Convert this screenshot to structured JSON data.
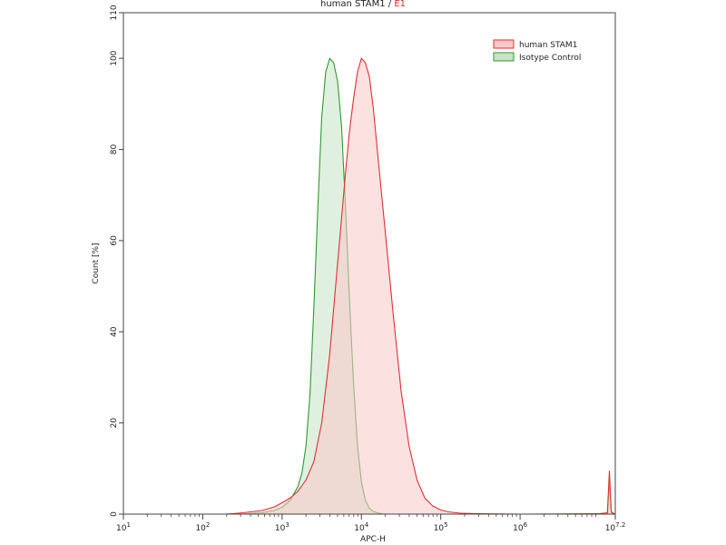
{
  "chart_data": {
    "type": "area",
    "title": "human STAM1",
    "title_separator": " / ",
    "title_suffix": "E1",
    "xlabel": "APC-H",
    "ylabel": "Count [%]",
    "x_scale": "log",
    "xlim": [
      10,
      15848932
    ],
    "ylim": [
      0,
      110
    ],
    "x_ticks": [
      {
        "value": 10,
        "base": "10",
        "exp": "1"
      },
      {
        "value": 100,
        "base": "10",
        "exp": "2"
      },
      {
        "value": 1000,
        "base": "10",
        "exp": "3"
      },
      {
        "value": 10000,
        "base": "10",
        "exp": "4"
      },
      {
        "value": 100000,
        "base": "10",
        "exp": "5"
      },
      {
        "value": 1000000,
        "base": "10",
        "exp": "6"
      },
      {
        "value": 15848932,
        "base": "10",
        "exp": "7.2"
      }
    ],
    "y_ticks": [
      0,
      20,
      40,
      60,
      80,
      100,
      110
    ],
    "legend_position": "top-right",
    "series": [
      {
        "name": "human STAM1",
        "stroke": "#e03030",
        "fill": "#f9c8c8",
        "fill_opacity": 0.55,
        "x": [
          200,
          320,
          560,
          800,
          1000,
          1260,
          1580,
          2000,
          2510,
          3160,
          3980,
          5010,
          6310,
          7080,
          7940,
          8910,
          10000,
          11220,
          12590,
          14130,
          15850,
          19950,
          25120,
          31620,
          39810,
          50120,
          63100,
          79430,
          100000,
          125900,
          177800,
          316200,
          1000000,
          3162000,
          10000000,
          12590000,
          13340000,
          14130000,
          14960000,
          15850000
        ],
        "y": [
          0,
          0.3,
          0.8,
          1.6,
          2.5,
          3.5,
          5,
          7.5,
          11.5,
          20,
          35,
          55,
          75,
          84,
          91,
          97,
          100,
          99,
          96,
          89,
          80,
          62,
          44,
          27,
          15,
          7.5,
          3.5,
          1.8,
          0.9,
          0.5,
          0.2,
          0.1,
          0,
          0,
          0.1,
          0.3,
          9.5,
          0.5,
          0.2,
          0
        ]
      },
      {
        "name": "Isotype Control",
        "stroke": "#2e9a2e",
        "fill": "#c6e4c6",
        "fill_opacity": 0.55,
        "x": [
          300,
          560,
          800,
          1000,
          1260,
          1580,
          1780,
          2000,
          2240,
          2510,
          2820,
          3160,
          3550,
          3980,
          4470,
          5010,
          5620,
          6310,
          7080,
          7940,
          8910,
          10000,
          11220,
          12590,
          14130,
          15850,
          17780,
          19950,
          25120,
          31620,
          50120,
          100000,
          1000000,
          10000000,
          12590000,
          13340000,
          14130000,
          14960000,
          15850000
        ],
        "y": [
          0,
          0.3,
          0.8,
          1.5,
          3,
          6,
          9,
          15,
          26,
          45,
          67,
          87,
          97,
          100,
          99,
          95,
          85,
          67,
          47,
          29,
          15,
          7,
          3,
          1.3,
          0.6,
          0.3,
          0.1,
          0,
          0,
          0,
          0,
          0,
          0,
          0.1,
          0.2,
          7,
          0.4,
          0.1,
          0
        ]
      }
    ]
  }
}
